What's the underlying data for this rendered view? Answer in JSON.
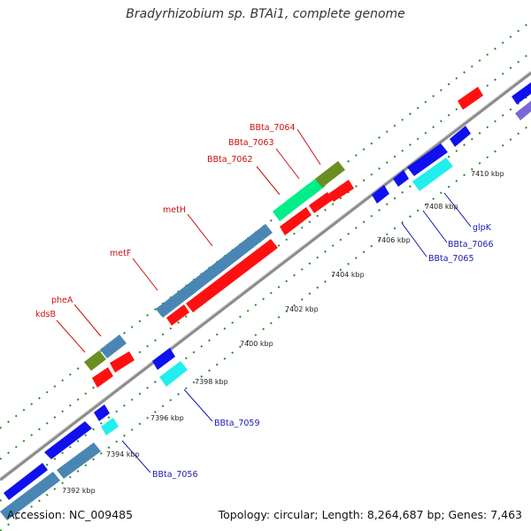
{
  "title": "Bradyrhizobium sp. BTAi1, complete genome",
  "footer": {
    "accession": "Accession: NC_009485",
    "summary": "Topology: circular; Length: 8,264,687 bp; Genes: 7,463"
  },
  "colors": {
    "backbone": "#8c8c8c",
    "tick": "#2a8a2a",
    "label_red": "#cc1010",
    "label_blue": "#1a1ab0",
    "cds_red": "#ff1010",
    "cds_blue": "#1010ee",
    "cds_steel": "#4a86b4",
    "cds_olive": "#6b8e23",
    "cds_cyan": "#22eeee",
    "cds_springgreen": "#00ee88",
    "cds_slate": "#7868d8"
  },
  "scale": {
    "unit": "kbp",
    "ticks": [
      {
        "kbp": 7392,
        "label": "7392 kbp"
      },
      {
        "kbp": 7394,
        "label": "7394 kbp"
      },
      {
        "kbp": 7396,
        "label": "7396 kbp"
      },
      {
        "kbp": 7398,
        "label": "7398 kbp"
      },
      {
        "kbp": 7400,
        "label": "7400 kbp"
      },
      {
        "kbp": 7402,
        "label": "7402 kbp"
      },
      {
        "kbp": 7404,
        "label": "7404 kbp"
      },
      {
        "kbp": 7406,
        "label": "7406 kbp"
      },
      {
        "kbp": 7408,
        "label": "7408 kbp"
      },
      {
        "kbp": 7410,
        "label": "7410 kbp"
      }
    ]
  },
  "labels_forward": [
    "BBta_7064",
    "BBta_7063",
    "BBta_7062",
    "metH",
    "metF",
    "pheA",
    "kdsB"
  ],
  "labels_reverse": [
    "BBta_7059",
    "BBta_7056",
    "BBta_7065",
    "BBta_7066",
    "glpK"
  ]
}
